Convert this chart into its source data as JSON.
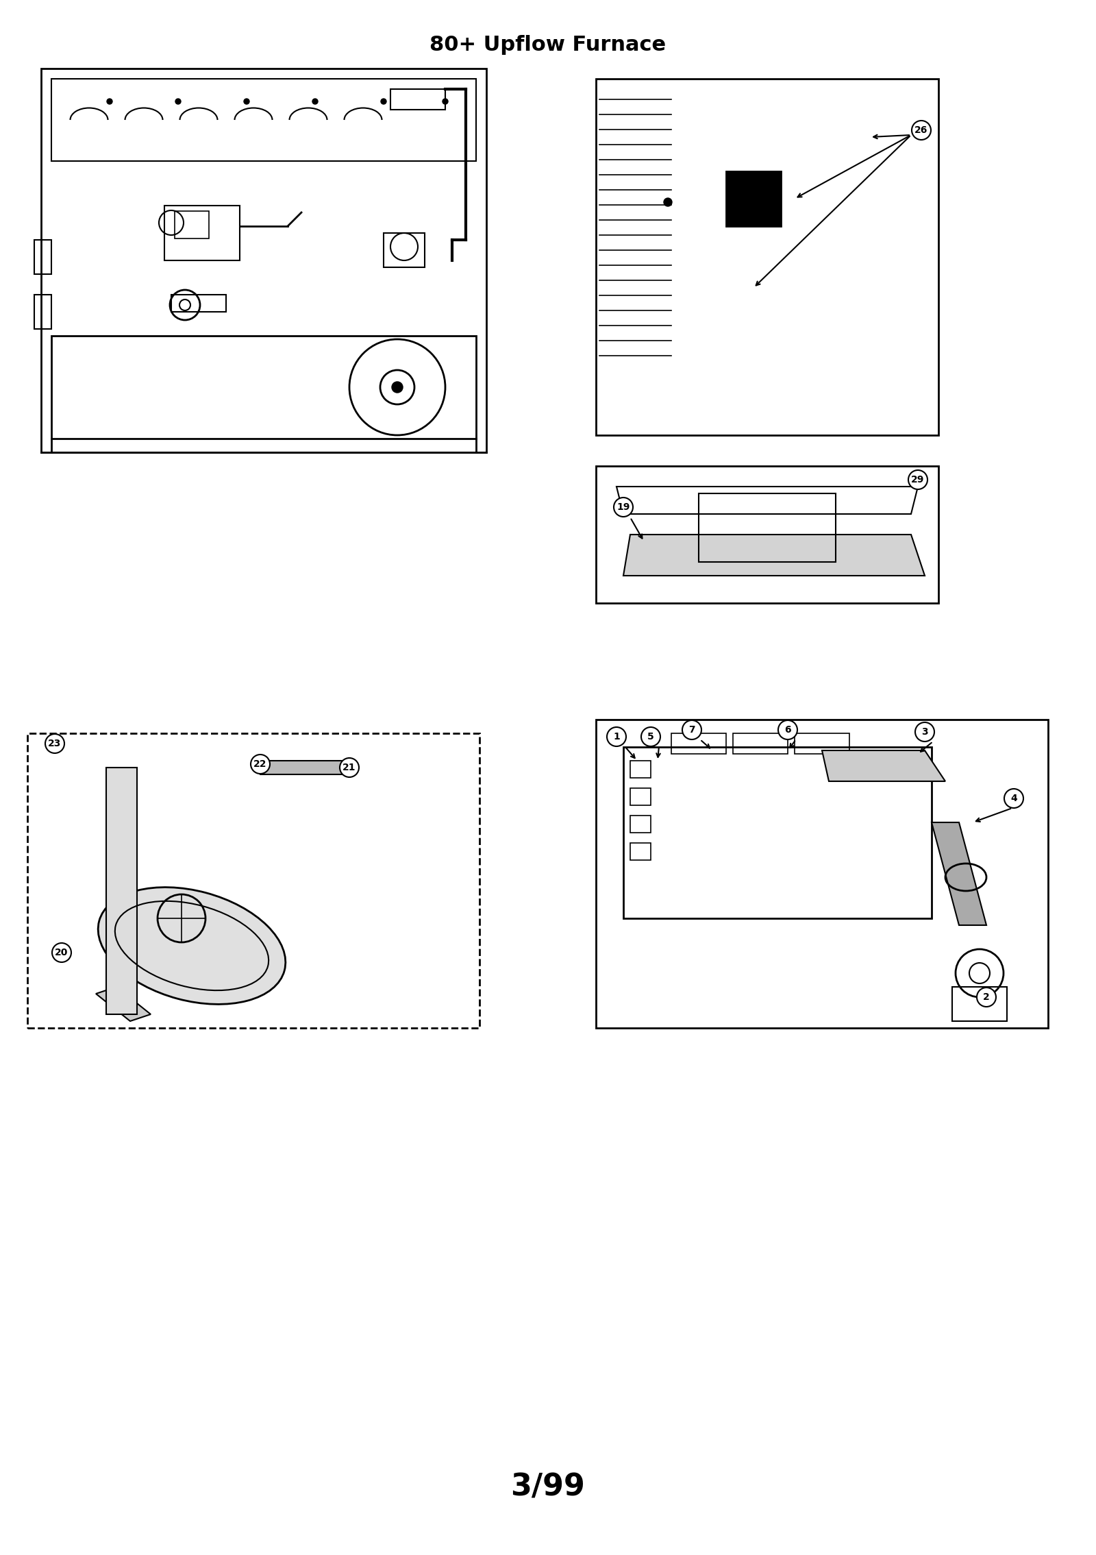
{
  "title": "80+ Upflow Furnace",
  "footer": "3/99",
  "bg_color": "#ffffff",
  "title_fontsize": 22,
  "footer_fontsize": 32,
  "line_color": "#000000",
  "panel_bg": "#ffffff",
  "label_fontsize": 13
}
